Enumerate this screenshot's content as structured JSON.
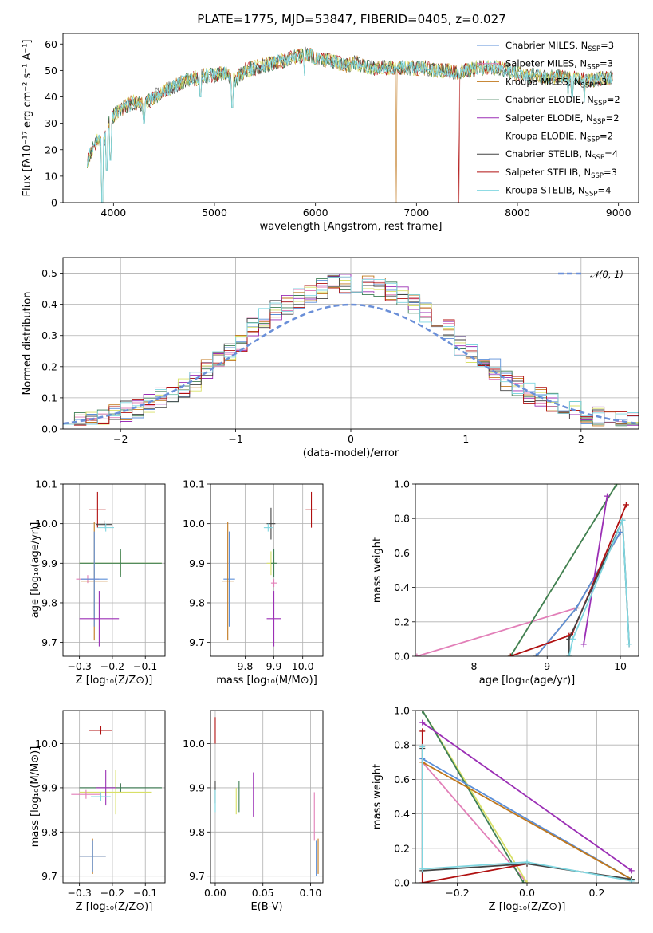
{
  "colors": {
    "chabrier_miles": "#5b8fd9",
    "salpeter_miles": "#e27fb8",
    "kroupa_miles": "#c0771c",
    "chabrier_elodie": "#3f7f56",
    "salpeter_elodie": "#9b2fb5",
    "kroupa_elodie": "#d8e066",
    "chabrier_stelib": "#444444",
    "salpeter_stelib": "#b01010",
    "kroupa_stelib": "#7fd6e0",
    "gauss": "#6a8fd8",
    "grid": "#b0b0b0"
  },
  "chart_data": [
    {
      "id": "spectrum",
      "type": "line",
      "title": "PLATE=1775, MJD=53847, FIBERID=0405, z=0.027",
      "xlabel": "wavelength [Angstrom, rest frame]",
      "ylabel": "Flux [fλ10⁻¹⁷ erg cm⁻² s⁻¹ A⁻¹]",
      "xlim": [
        3500,
        9200
      ],
      "ylim": [
        0,
        64
      ],
      "xticks": [
        4000,
        5000,
        6000,
        7000,
        8000,
        9000
      ],
      "yticks": [
        0,
        10,
        20,
        30,
        40,
        50,
        60
      ],
      "legend_placement": "top-right",
      "legend": [
        "Chabrier MILES, N_SSP=3",
        "Salpeter MILES, N_SSP=3",
        "Kroupa MILES, N_SSP=3",
        "Chabrier ELODIE, N_SSP=2",
        "Salpeter ELODIE, N_SSP=2",
        "Kroupa ELODIE, N_SSP=2",
        "Chabrier STELIB, N_SSP=4",
        "Salpeter STELIB, N_SSP=3",
        "Kroupa STELIB, N_SSP=4"
      ],
      "continuum": [
        [
          3740,
          16
        ],
        [
          3800,
          21
        ],
        [
          3850,
          24
        ],
        [
          3900,
          22
        ],
        [
          3950,
          30
        ],
        [
          4000,
          33
        ],
        [
          4100,
          36
        ],
        [
          4200,
          38
        ],
        [
          4300,
          37
        ],
        [
          4400,
          40
        ],
        [
          4500,
          42
        ],
        [
          4600,
          44
        ],
        [
          4700,
          46
        ],
        [
          4800,
          47
        ],
        [
          4900,
          48
        ],
        [
          5000,
          48
        ],
        [
          5100,
          49
        ],
        [
          5200,
          46
        ],
        [
          5300,
          50
        ],
        [
          5400,
          51
        ],
        [
          5500,
          52
        ],
        [
          5600,
          53
        ],
        [
          5700,
          54
        ],
        [
          5800,
          55
        ],
        [
          5900,
          56
        ],
        [
          6000,
          55
        ],
        [
          6100,
          54
        ],
        [
          6200,
          53
        ],
        [
          6300,
          52
        ],
        [
          6400,
          53
        ],
        [
          6500,
          51
        ],
        [
          6600,
          51
        ],
        [
          6700,
          51
        ],
        [
          6800,
          51
        ],
        [
          6900,
          51
        ],
        [
          7000,
          51
        ],
        [
          7100,
          51
        ],
        [
          7200,
          50
        ],
        [
          7300,
          50
        ],
        [
          7400,
          49
        ],
        [
          7500,
          50
        ],
        [
          7600,
          51
        ],
        [
          7700,
          51
        ],
        [
          7800,
          51
        ],
        [
          7900,
          50
        ],
        [
          8000,
          49
        ],
        [
          8100,
          48
        ],
        [
          8200,
          48
        ],
        [
          8300,
          47
        ],
        [
          8400,
          48
        ],
        [
          8500,
          47
        ],
        [
          8600,
          47
        ],
        [
          8700,
          46
        ],
        [
          8800,
          47
        ],
        [
          8900,
          47
        ],
        [
          8950,
          47
        ]
      ],
      "dips": [
        [
          3890,
          0
        ],
        [
          3934,
          12
        ],
        [
          3969,
          16
        ],
        [
          4300,
          30
        ],
        [
          4861,
          40
        ],
        [
          5175,
          36
        ],
        [
          5890,
          48
        ],
        [
          6800,
          0
        ],
        [
          7420,
          0
        ],
        [
          8500,
          40
        ],
        [
          8542,
          40
        ],
        [
          8662,
          38
        ]
      ],
      "grid": false
    },
    {
      "id": "residuals",
      "type": "histogram",
      "xlabel": "(data-model)/error",
      "ylabel": "Normed distribution",
      "xlim": [
        -2.5,
        2.5
      ],
      "ylim": [
        0,
        0.55
      ],
      "xticks": [
        -2,
        -1,
        0,
        1,
        2
      ],
      "yticks": [
        0.0,
        0.1,
        0.2,
        0.3,
        0.4,
        0.5
      ],
      "legend": [
        "𝒩(0, 1)"
      ],
      "legend_placement": "top-right",
      "bin_width": 0.1,
      "grid": true
    },
    {
      "id": "age-vs-Z",
      "type": "errorbar",
      "xlabel": "Z [log₁₀(Z/Z⊙)]",
      "ylabel": "age  [log₁₀(age/yr)]",
      "xlim": [
        -0.35,
        -0.04
      ],
      "ylim": [
        9.665,
        10.1
      ],
      "xticks": [
        -0.3,
        -0.2,
        -0.1
      ],
      "yticks": [
        9.7,
        9.8,
        9.9,
        10.0,
        10.1
      ],
      "grid": true,
      "points": [
        {
          "s": "salpeter_stelib",
          "x": -0.245,
          "y": 10.035,
          "xe": 0.025,
          "ye": 0.045
        },
        {
          "s": "chabrier_stelib",
          "x": -0.225,
          "y": 9.998,
          "xe": 0.025,
          "ye": 0.01
        },
        {
          "s": "kroupa_stelib",
          "x": -0.22,
          "y": 9.99,
          "xe": 0.025,
          "ye": 0.01
        },
        {
          "s": "kroupa_elodie",
          "x": -0.175,
          "y": 9.9,
          "xe": 0.125,
          "ye": 0.03
        },
        {
          "s": "chabrier_elodie",
          "x": -0.175,
          "y": 9.9,
          "xe": 0.125,
          "ye": 0.035
        },
        {
          "s": "salpeter_miles",
          "x": -0.275,
          "y": 9.86,
          "xe": 0.035,
          "ye": 0.01
        },
        {
          "s": "kroupa_miles",
          "x": -0.255,
          "y": 9.855,
          "xe": 0.04,
          "ye": 0.15
        },
        {
          "s": "chabrier_miles",
          "x": -0.255,
          "y": 9.86,
          "xe": 0.04,
          "ye": 0.12
        },
        {
          "s": "salpeter_elodie",
          "x": -0.24,
          "y": 9.76,
          "xe": 0.06,
          "ye": 0.07
        }
      ]
    },
    {
      "id": "age-vs-mass",
      "type": "errorbar",
      "xlabel": "mass [log₁₀(M/M⊙)]",
      "ylabel": "",
      "xlim": [
        9.68,
        10.07
      ],
      "ylim": [
        9.665,
        10.1
      ],
      "xticks": [
        9.8,
        9.9,
        10.0
      ],
      "yticks": [
        9.7,
        9.8,
        9.9,
        10.0,
        10.1
      ],
      "grid": true,
      "points": [
        {
          "s": "salpeter_stelib",
          "x": 10.03,
          "y": 10.035,
          "xe": 0.02,
          "ye": 0.045
        },
        {
          "s": "chabrier_stelib",
          "x": 9.89,
          "y": 10.0,
          "xe": 0.015,
          "ye": 0.04
        },
        {
          "s": "kroupa_stelib",
          "x": 9.88,
          "y": 9.99,
          "xe": 0.015,
          "ye": 0.01
        },
        {
          "s": "kroupa_elodie",
          "x": 9.89,
          "y": 9.9,
          "xe": 0.015,
          "ye": 0.03
        },
        {
          "s": "chabrier_elodie",
          "x": 9.9,
          "y": 9.9,
          "xe": 0.01,
          "ye": 0.035
        },
        {
          "s": "chabrier_miles",
          "x": 9.745,
          "y": 9.86,
          "xe": 0.02,
          "ye": 0.12
        },
        {
          "s": "kroupa_miles",
          "x": 9.74,
          "y": 9.855,
          "xe": 0.02,
          "ye": 0.15
        },
        {
          "s": "salpeter_miles",
          "x": 9.9,
          "y": 9.85,
          "xe": 0.01,
          "ye": 0.01
        },
        {
          "s": "salpeter_elodie",
          "x": 9.9,
          "y": 9.76,
          "xe": 0.025,
          "ye": 0.07
        }
      ]
    },
    {
      "id": "mass-weight-vs-age",
      "type": "line",
      "xlabel": "age  [log₁₀(age/yr)]",
      "ylabel": "mass weight",
      "xlim": [
        7.2,
        10.25
      ],
      "ylim": [
        0,
        1
      ],
      "xticks": [
        8,
        9,
        10
      ],
      "yticks": [
        0.0,
        0.2,
        0.4,
        0.6,
        0.8,
        1.0
      ],
      "grid": true,
      "series": [
        {
          "s": "salpeter_miles",
          "points": [
            [
              7.22,
              0.0
            ],
            [
              9.4,
              0.28
            ],
            [
              10.0,
              0.72
            ]
          ]
        },
        {
          "s": "kroupa_miles",
          "points": [
            [
              8.85,
              0.0
            ],
            [
              9.4,
              0.28
            ],
            [
              10.0,
              0.72
            ]
          ]
        },
        {
          "s": "chabrier_miles",
          "points": [
            [
              8.85,
              0.0
            ],
            [
              9.4,
              0.28
            ],
            [
              10.0,
              0.72
            ]
          ]
        },
        {
          "s": "kroupa_elodie",
          "points": [
            [
              8.5,
              0.0
            ],
            [
              9.95,
              1.0
            ]
          ]
        },
        {
          "s": "chabrier_elodie",
          "points": [
            [
              8.5,
              0.0
            ],
            [
              9.95,
              1.0
            ]
          ]
        },
        {
          "s": "salpeter_elodie",
          "points": [
            [
              9.5,
              0.07
            ],
            [
              9.82,
              0.93
            ]
          ]
        },
        {
          "s": "salpeter_stelib",
          "points": [
            [
              8.5,
              0.0
            ],
            [
              9.3,
              0.12
            ],
            [
              9.35,
              0.14
            ],
            [
              10.08,
              0.88
            ]
          ]
        },
        {
          "s": "chabrier_stelib",
          "points": [
            [
              9.3,
              0.0
            ],
            [
              9.3,
              0.1
            ],
            [
              10.03,
              0.79
            ],
            [
              10.12,
              0.07
            ]
          ]
        },
        {
          "s": "kroupa_stelib",
          "points": [
            [
              9.3,
              0.0
            ],
            [
              9.35,
              0.1
            ],
            [
              10.03,
              0.79
            ],
            [
              10.12,
              0.07
            ]
          ]
        }
      ]
    },
    {
      "id": "mass-vs-Z",
      "type": "errorbar",
      "xlabel": "Z [log₁₀(Z/Z⊙)]",
      "ylabel": "mass [log₁₀(M/M⊙)]",
      "xlim": [
        -0.35,
        -0.04
      ],
      "ylim": [
        9.685,
        10.075
      ],
      "xticks": [
        -0.3,
        -0.2,
        -0.1
      ],
      "yticks": [
        9.7,
        9.8,
        9.9,
        10.0
      ],
      "grid": true,
      "points": [
        {
          "s": "salpeter_stelib",
          "x": -0.235,
          "y": 10.03,
          "xe": 0.035,
          "ye": 0.01
        },
        {
          "s": "chabrier_stelib",
          "x": -0.175,
          "y": 9.9,
          "xe": 0.125,
          "ye": 0.01
        },
        {
          "s": "chabrier_elodie",
          "x": -0.175,
          "y": 9.9,
          "xe": 0.125,
          "ye": 0.01
        },
        {
          "s": "kroupa_elodie",
          "x": -0.19,
          "y": 9.89,
          "xe": 0.11,
          "ye": 0.05
        },
        {
          "s": "salpeter_elodie",
          "x": -0.22,
          "y": 9.9,
          "xe": 0.03,
          "ye": 0.04
        },
        {
          "s": "kroupa_stelib",
          "x": -0.235,
          "y": 9.88,
          "xe": 0.03,
          "ye": 0.01
        },
        {
          "s": "salpeter_miles",
          "x": -0.28,
          "y": 9.885,
          "xe": 0.045,
          "ye": 0.01
        },
        {
          "s": "kroupa_miles",
          "x": -0.26,
          "y": 9.745,
          "xe": 0.04,
          "ye": 0.04
        },
        {
          "s": "chabrier_miles",
          "x": -0.26,
          "y": 9.745,
          "xe": 0.04,
          "ye": 0.035
        }
      ]
    },
    {
      "id": "mass-vs-ebv",
      "type": "errorbar",
      "xlabel": "E(B-V)",
      "ylabel": "",
      "xlim": [
        -0.005,
        0.113
      ],
      "ylim": [
        9.685,
        10.075
      ],
      "xticks": [
        0.0,
        0.05,
        0.1
      ],
      "yticks": [
        9.7,
        9.8,
        9.9,
        10.0
      ],
      "grid": true,
      "points": [
        {
          "s": "salpeter_stelib",
          "x": 0.0,
          "y": 10.03,
          "xe": 0,
          "ye": 0.03
        },
        {
          "s": "chabrier_stelib",
          "x": 0.0,
          "y": 9.89,
          "xe": 0,
          "ye": 0.025
        },
        {
          "s": "kroupa_stelib",
          "x": 0.0,
          "y": 9.87,
          "xe": 0,
          "ye": 0.025
        },
        {
          "s": "kroupa_elodie",
          "x": 0.022,
          "y": 9.87,
          "xe": 0,
          "ye": 0.03
        },
        {
          "s": "chabrier_elodie",
          "x": 0.025,
          "y": 9.88,
          "xe": 0,
          "ye": 0.035
        },
        {
          "s": "salpeter_elodie",
          "x": 0.04,
          "y": 9.885,
          "xe": 0,
          "ye": 0.05
        },
        {
          "s": "salpeter_miles",
          "x": 0.104,
          "y": 9.835,
          "xe": 0,
          "ye": 0.055
        },
        {
          "s": "chabrier_miles",
          "x": 0.106,
          "y": 9.74,
          "xe": 0,
          "ye": 0.04
        },
        {
          "s": "kroupa_miles",
          "x": 0.108,
          "y": 9.745,
          "xe": 0,
          "ye": 0.04
        }
      ]
    },
    {
      "id": "mass-weight-vs-Z",
      "type": "line",
      "xlabel": "Z [log₁₀(Z/Z⊙)]",
      "ylabel": "mass weight",
      "xlim": [
        -0.32,
        0.32
      ],
      "ylim": [
        0,
        1
      ],
      "xticks": [
        -0.2,
        0.0,
        0.2
      ],
      "yticks": [
        0.0,
        0.2,
        0.4,
        0.6,
        0.8,
        1.0
      ],
      "grid": true,
      "series": [
        {
          "s": "salpeter_miles",
          "points": [
            [
              -0.3,
              0.7
            ],
            [
              0.0,
              0.0
            ]
          ]
        },
        {
          "s": "kroupa_elodie",
          "points": [
            [
              -0.3,
              1.0
            ],
            [
              0.0,
              0.0
            ]
          ]
        },
        {
          "s": "chabrier_elodie",
          "points": [
            [
              -0.3,
              1.0
            ],
            [
              -0.01,
              0.0
            ]
          ]
        },
        {
          "s": "chabrier_miles",
          "points": [
            [
              -0.3,
              0.72
            ],
            [
              0.3,
              0.02
            ]
          ]
        },
        {
          "s": "kroupa_miles",
          "points": [
            [
              -0.3,
              0.7
            ],
            [
              0.3,
              0.02
            ]
          ]
        },
        {
          "s": "salpeter_elodie",
          "points": [
            [
              -0.3,
              0.93
            ],
            [
              0.3,
              0.07
            ]
          ]
        },
        {
          "s": "salpeter_stelib",
          "points": [
            [
              -0.3,
              0.88
            ],
            [
              -0.3,
              0.0
            ],
            [
              0.0,
              0.11
            ]
          ]
        },
        {
          "s": "chabrier_stelib",
          "points": [
            [
              -0.3,
              0.78
            ],
            [
              -0.3,
              0.07
            ],
            [
              0.0,
              0.11
            ],
            [
              0.3,
              0.02
            ]
          ]
        },
        {
          "s": "kroupa_stelib",
          "points": [
            [
              -0.3,
              0.79
            ],
            [
              -0.3,
              0.08
            ],
            [
              0.0,
              0.12
            ],
            [
              0.3,
              0.01
            ]
          ]
        }
      ]
    }
  ]
}
